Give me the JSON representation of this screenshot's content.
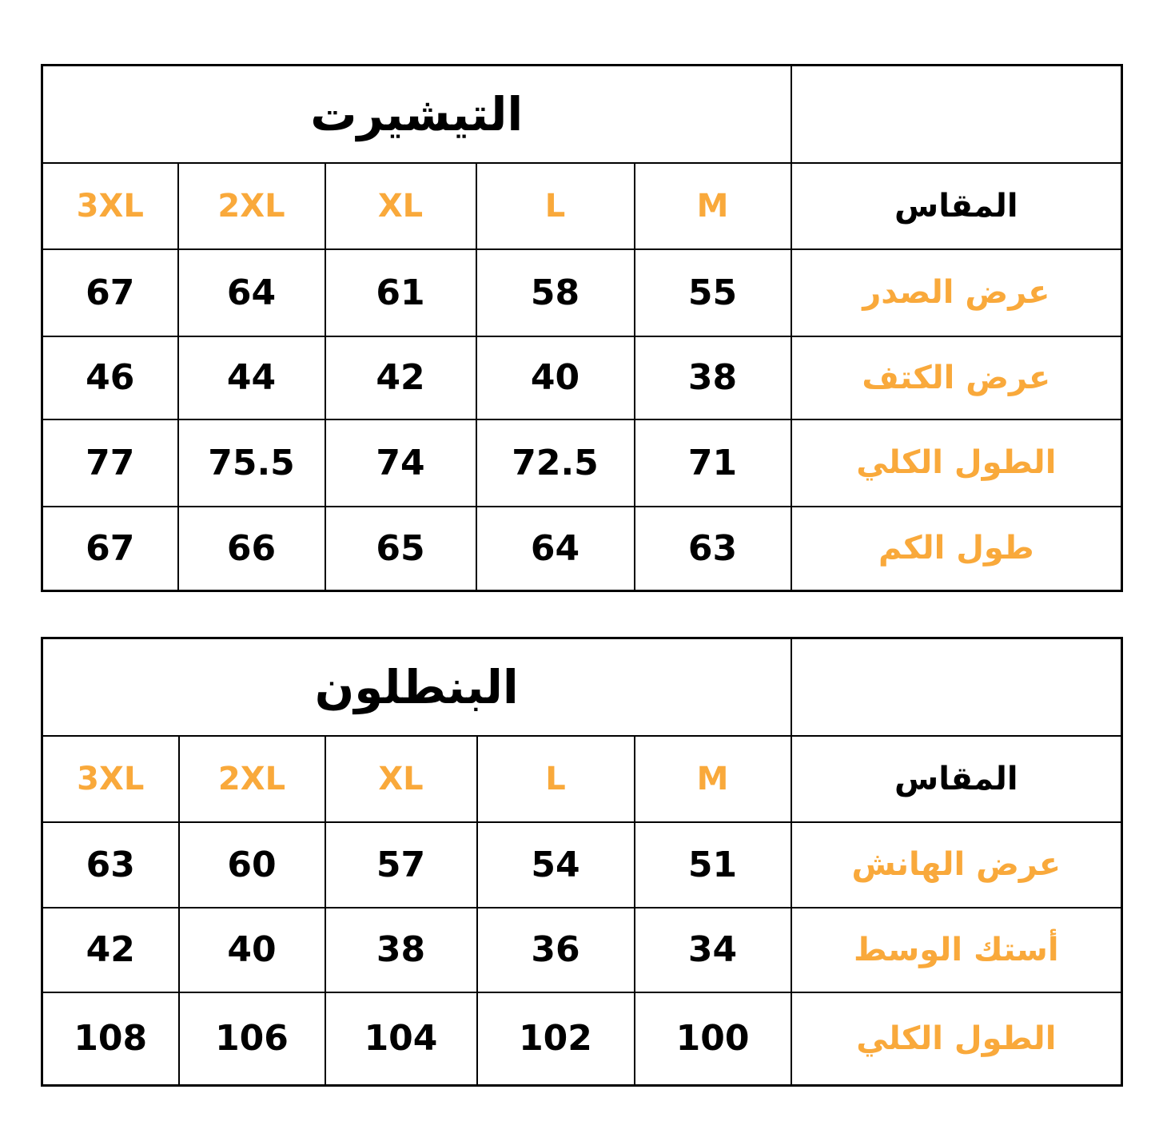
{
  "accent_color": "#F9A93B",
  "sizes": [
    "3XL",
    "2XL",
    "XL",
    "L",
    "M"
  ],
  "size_label": "المقاس",
  "tshirt": {
    "title": "التيشيرت",
    "rows": [
      {
        "label": "عرض الصدر",
        "values": [
          "67",
          "64",
          "61",
          "58",
          "55"
        ]
      },
      {
        "label": "عرض الكتف",
        "values": [
          "46",
          "44",
          "42",
          "40",
          "38"
        ]
      },
      {
        "label": "الطول الكلي",
        "values": [
          "77",
          "75.5",
          "74",
          "72.5",
          "71"
        ]
      },
      {
        "label": "طول الكم",
        "values": [
          "67",
          "66",
          "65",
          "64",
          "63"
        ]
      }
    ]
  },
  "pants": {
    "title": "البنطلون",
    "rows": [
      {
        "label": "عرض الهانش",
        "values": [
          "63",
          "60",
          "57",
          "54",
          "51"
        ]
      },
      {
        "label": "أستك الوسط",
        "values": [
          "42",
          "40",
          "38",
          "36",
          "34"
        ]
      },
      {
        "label": "الطول الكلي",
        "values": [
          "108",
          "106",
          "104",
          "102",
          "100"
        ]
      }
    ]
  }
}
